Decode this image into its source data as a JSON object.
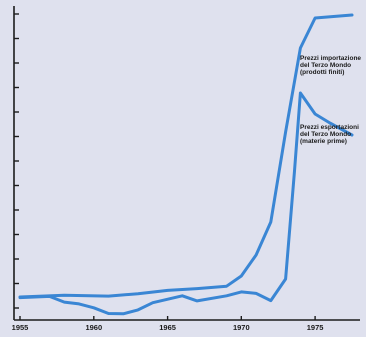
{
  "chart_data": {
    "type": "line",
    "title": "",
    "xlabel": "",
    "ylabel": "",
    "xlim": [
      1955,
      1977.5
    ],
    "ylim": [
      0,
      100
    ],
    "x_ticks": [
      "1955",
      "1960",
      "1965",
      "1970",
      "1975"
    ],
    "y_tick_count": 13,
    "grid": false,
    "series": [
      {
        "name": "Prezzi importazioni del Terzo Mondo (prodotti finiti)",
        "label_lines": [
          "Prezzi importazione",
          "del Terzo Mondo",
          "(prodotti finiti)"
        ],
        "color": "#3a86d4",
        "points": [
          [
            1955,
            5
          ],
          [
            1958,
            5.6
          ],
          [
            1961,
            5.3
          ],
          [
            1963,
            6.1
          ],
          [
            1965,
            7.2
          ],
          [
            1967,
            7.8
          ],
          [
            1969,
            8.6
          ],
          [
            1970,
            12
          ],
          [
            1971,
            19
          ],
          [
            1972,
            30
          ],
          [
            1973,
            60
          ],
          [
            1974,
            88
          ],
          [
            1975,
            98
          ],
          [
            1977.5,
            99
          ]
        ]
      },
      {
        "name": "Prezzi esportazioni del Terzo Mondo (materie prime)",
        "label_lines": [
          "Prezzi esportazioni",
          "del Terzo Mondo",
          "(materie prime)"
        ],
        "color": "#3a86d4",
        "points": [
          [
            1955,
            4.8
          ],
          [
            1957,
            5.2
          ],
          [
            1958,
            3.3
          ],
          [
            1959,
            2.7
          ],
          [
            1960,
            1.4
          ],
          [
            1961,
            -0.5
          ],
          [
            1962,
            -0.6
          ],
          [
            1963,
            0.7
          ],
          [
            1964,
            3.1
          ],
          [
            1966,
            5.4
          ],
          [
            1967,
            3.7
          ],
          [
            1969,
            5.4
          ],
          [
            1970,
            6.7
          ],
          [
            1971,
            6.2
          ],
          [
            1972,
            3.8
          ],
          [
            1973,
            11
          ],
          [
            1973.6,
            47
          ],
          [
            1974,
            73
          ],
          [
            1975,
            66
          ],
          [
            1976,
            63
          ],
          [
            1977.5,
            59
          ]
        ]
      }
    ]
  }
}
